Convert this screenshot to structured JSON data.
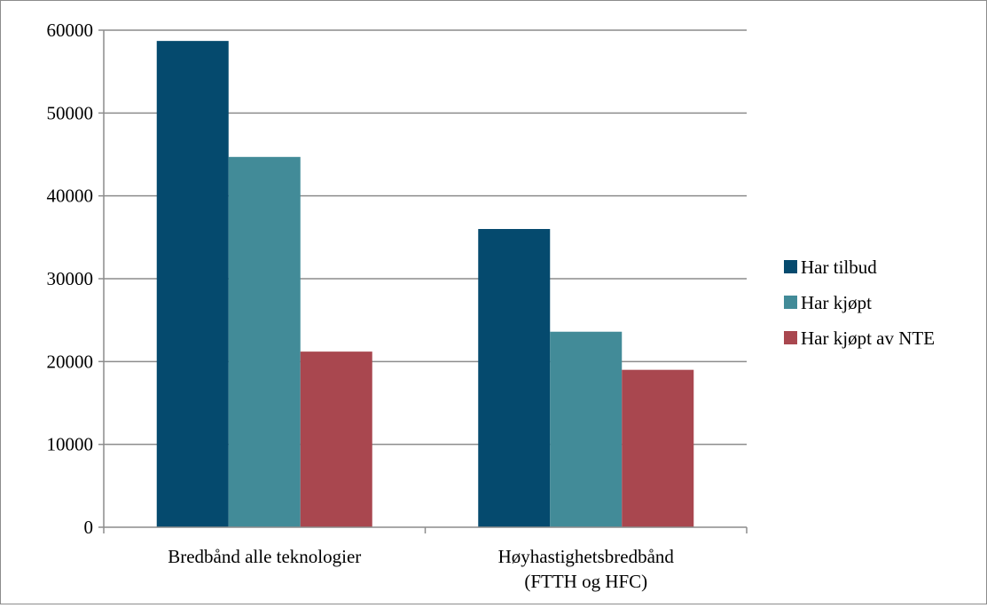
{
  "chart_data": {
    "type": "bar",
    "categories": [
      "Bredbånd alle teknologier",
      "Høyhastighetsbredbånd\n(FTTH og HFC)"
    ],
    "series": [
      {
        "name": "Har tilbud",
        "values": [
          58700,
          36000
        ],
        "color": "#054a6e"
      },
      {
        "name": "Har kjøpt",
        "values": [
          44700,
          23600
        ],
        "color": "#428b98"
      },
      {
        "name": "Har kjøpt av NTE",
        "values": [
          21200,
          19000
        ],
        "color": "#a9474f"
      }
    ],
    "title": "",
    "xlabel": "",
    "ylabel": "",
    "ylim": [
      0,
      60000
    ],
    "yticks": [
      0,
      10000,
      20000,
      30000,
      40000,
      50000,
      60000
    ],
    "grid": true,
    "legend": "right",
    "colors": {
      "grid": "#8c8c8c",
      "axis": "#8c8c8c",
      "frame": "#8c8c8c"
    }
  }
}
